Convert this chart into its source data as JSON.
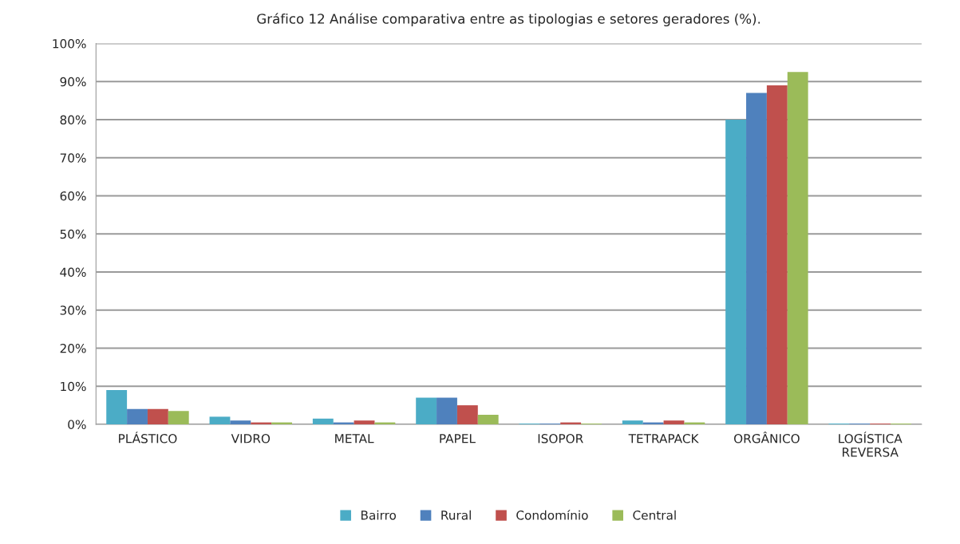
{
  "chart_data": {
    "type": "bar",
    "title": "Gráfico 12 Análise comparativa entre as tipologias e setores geradores (%).",
    "categories": [
      "PLÁSTICO",
      "VIDRO",
      "METAL",
      "PAPEL",
      "ISOPOR",
      "TETRAPACK",
      "ORGÂNICO",
      "LOGÍSTICA\nREVERSA"
    ],
    "series": [
      {
        "name": "Bairro",
        "color": "#4bacc6",
        "values": [
          9,
          2,
          1.5,
          7,
          0.2,
          1,
          80,
          0.2
        ]
      },
      {
        "name": "Rural",
        "color": "#4f81bd",
        "values": [
          4,
          1,
          0.5,
          7,
          0.2,
          0.5,
          87,
          0.2
        ]
      },
      {
        "name": "Condomínio",
        "color": "#c0504d",
        "values": [
          4,
          0.5,
          1,
          5,
          0.5,
          1,
          89,
          0.2
        ]
      },
      {
        "name": "Central",
        "color": "#9bbb59",
        "values": [
          3.5,
          0.5,
          0.5,
          2.5,
          0.2,
          0.5,
          92.5,
          0.2
        ]
      }
    ],
    "ylim": [
      0,
      100
    ],
    "yticks": [
      {
        "value": 0,
        "label": "0%"
      },
      {
        "value": 10,
        "label": "10%"
      },
      {
        "value": 20,
        "label": "20%"
      },
      {
        "value": 30,
        "label": "30%"
      },
      {
        "value": 40,
        "label": "40%"
      },
      {
        "value": 50,
        "label": "50%"
      },
      {
        "value": 60,
        "label": "60%"
      },
      {
        "value": 70,
        "label": "70%"
      },
      {
        "value": 80,
        "label": "80%"
      },
      {
        "value": 90,
        "label": "90%"
      },
      {
        "value": 100,
        "label": "100%"
      }
    ],
    "grid": "y",
    "legend": "bottom"
  }
}
